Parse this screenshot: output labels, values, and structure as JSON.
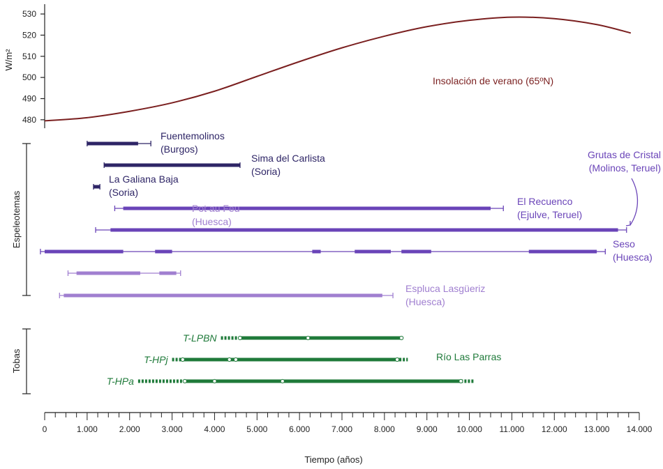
{
  "chart_data": {
    "type": "timeline",
    "insolation": {
      "ylabel": "W/m²",
      "yticks": [
        480,
        490,
        500,
        510,
        520,
        530
      ],
      "ylim": [
        476,
        532
      ],
      "label": "Insolación de verano (65ºN)",
      "color": "#7a1f1f",
      "x": [
        0,
        1000,
        2000,
        3000,
        4000,
        5000,
        6000,
        7000,
        8000,
        9000,
        10000,
        11000,
        12000,
        13000,
        13800
      ],
      "y": [
        479.5,
        481,
        484,
        488,
        493.5,
        500.5,
        507.5,
        514,
        519.5,
        524,
        527,
        528.5,
        527.8,
        525,
        521
      ]
    },
    "x_axis": {
      "label": "Tiempo (años)",
      "ticks": [
        "0",
        "1.000",
        "2.000",
        "3.000",
        "4.000",
        "5.000",
        "6.000",
        "7.000",
        "8.000",
        "9.000",
        "10.000",
        "11.000",
        "12.000",
        "13.000",
        "14.000"
      ],
      "xlim": [
        0,
        14000
      ]
    },
    "groups": [
      {
        "name": "Espeleotemas"
      },
      {
        "name": "Tobas"
      }
    ],
    "speleothems": [
      {
        "name": "Fuentemolinos",
        "region": "(Burgos)",
        "color": "#2e2566",
        "range": [
          1000,
          2500
        ],
        "thick": [
          [
            1000,
            2200
          ]
        ]
      },
      {
        "name": "Sima del Carlista",
        "region": "(Soria)",
        "color": "#2e2566",
        "range": [
          1400,
          4600
        ],
        "thick": [
          [
            1400,
            4600
          ]
        ]
      },
      {
        "name": "La Galiana Baja",
        "region": "(Soria)",
        "color": "#2e2566",
        "range": [
          1150,
          1300
        ],
        "thick": [
          [
            1150,
            1300
          ]
        ]
      },
      {
        "name": "El Recuenco",
        "region": "(Ejulve, Teruel)",
        "color": "#6a44b8",
        "range": [
          1650,
          10800
        ],
        "thick": [
          [
            1850,
            10500
          ]
        ]
      },
      {
        "name": "Grutas de Cristal",
        "region": "(Molinos, Teruel)",
        "color": "#6a44b8",
        "range": [
          1200,
          13700
        ],
        "thick": [
          [
            1550,
            13500
          ]
        ]
      },
      {
        "name": "Seso",
        "region": "(Huesca)",
        "color": "#6a44b8",
        "range": [
          -100,
          13200
        ],
        "thick": [
          [
            0,
            1850
          ],
          [
            2600,
            3000
          ],
          [
            6300,
            6500
          ],
          [
            7300,
            8150
          ],
          [
            8400,
            9100
          ],
          [
            11400,
            13000
          ]
        ]
      },
      {
        "name": "Pot au Feu",
        "region": "(Huesca)",
        "color": "#a07fd0",
        "range": [
          550,
          3200
        ],
        "thick": [
          [
            750,
            2250
          ],
          [
            2700,
            3100
          ]
        ]
      },
      {
        "name": "Espluca Lasgüeriz",
        "region": "(Huesca)",
        "color": "#a07fd0",
        "range": [
          350,
          8200
        ],
        "thick": [
          [
            450,
            7950
          ]
        ]
      }
    ],
    "tufas": {
      "label": "Río Las Parras",
      "color": "#1f7a3a",
      "series": [
        {
          "name": "T-LPBN",
          "dotted": [
            4150,
            4550
          ],
          "solid": [
            4600,
            8400
          ],
          "dotted_end": null,
          "points": [
            4600,
            6200,
            8400
          ]
        },
        {
          "name": "T-HPj",
          "dotted": [
            3000,
            3250
          ],
          "solid": [
            3250,
            8350
          ],
          "dotted_end": [
            8350,
            8550
          ],
          "points": [
            3250,
            4350,
            4500,
            8300
          ]
        },
        {
          "name": "T-HPa",
          "dotted": [
            2200,
            3300
          ],
          "solid": [
            3300,
            9800
          ],
          "dotted_end": [
            9800,
            10100
          ],
          "points": [
            3300,
            4000,
            5600,
            9800
          ]
        }
      ]
    }
  }
}
